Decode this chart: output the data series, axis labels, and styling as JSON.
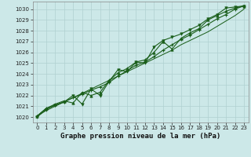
{
  "xlabel": "Graphe pression niveau de la mer (hPa)",
  "background_color": "#cce8e8",
  "grid_color": "#b0d0d0",
  "line_color": "#1a5e1a",
  "x": [
    0,
    1,
    2,
    3,
    4,
    5,
    6,
    7,
    8,
    9,
    10,
    11,
    12,
    13,
    14,
    15,
    16,
    17,
    18,
    19,
    20,
    21,
    22,
    23
  ],
  "y_main": [
    1020.1,
    1020.8,
    1021.1,
    1021.4,
    1021.8,
    1022.1,
    1022.5,
    1022.8,
    1023.2,
    1023.8,
    1024.3,
    1024.8,
    1025.1,
    1025.6,
    1026.2,
    1026.7,
    1027.2,
    1027.6,
    1028.1,
    1028.6,
    1029.1,
    1029.5,
    1030.0,
    1030.3
  ],
  "y_jagged": [
    1020.1,
    1020.8,
    1021.2,
    1021.5,
    1021.3,
    1022.3,
    1022.0,
    1022.3,
    1023.4,
    1024.1,
    1024.5,
    1025.1,
    1025.3,
    1026.0,
    1027.0,
    1026.3,
    1027.3,
    1027.8,
    1028.2,
    1029.0,
    1029.4,
    1029.8,
    1030.1,
    1030.3
  ],
  "y_dip": [
    1020.0,
    1020.7,
    1021.1,
    1021.4,
    1022.0,
    1021.2,
    1022.6,
    1022.0,
    1023.3,
    1024.4,
    1024.2,
    1025.1,
    1025.0,
    1026.5,
    1027.1,
    1027.4,
    1027.7,
    1028.1,
    1028.5,
    1029.1,
    1029.5,
    1030.1,
    1030.2,
    1030.3
  ],
  "y_smooth": [
    1020.1,
    1020.6,
    1021.0,
    1021.4,
    1021.8,
    1022.2,
    1022.6,
    1023.0,
    1023.4,
    1023.8,
    1024.2,
    1024.6,
    1025.0,
    1025.4,
    1025.8,
    1026.2,
    1026.7,
    1027.1,
    1027.5,
    1027.9,
    1028.4,
    1028.9,
    1029.4,
    1030.0
  ],
  "ylim": [
    1019.5,
    1030.7
  ],
  "xlim": [
    -0.5,
    23.5
  ],
  "yticks": [
    1020,
    1021,
    1022,
    1023,
    1024,
    1025,
    1026,
    1027,
    1028,
    1029,
    1030
  ],
  "xticks": [
    0,
    1,
    2,
    3,
    4,
    5,
    6,
    7,
    8,
    9,
    10,
    11,
    12,
    13,
    14,
    15,
    16,
    17,
    18,
    19,
    20,
    21,
    22,
    23
  ],
  "tick_fontsize": 5.0,
  "xlabel_fontsize": 6.5,
  "line_width": 0.8
}
